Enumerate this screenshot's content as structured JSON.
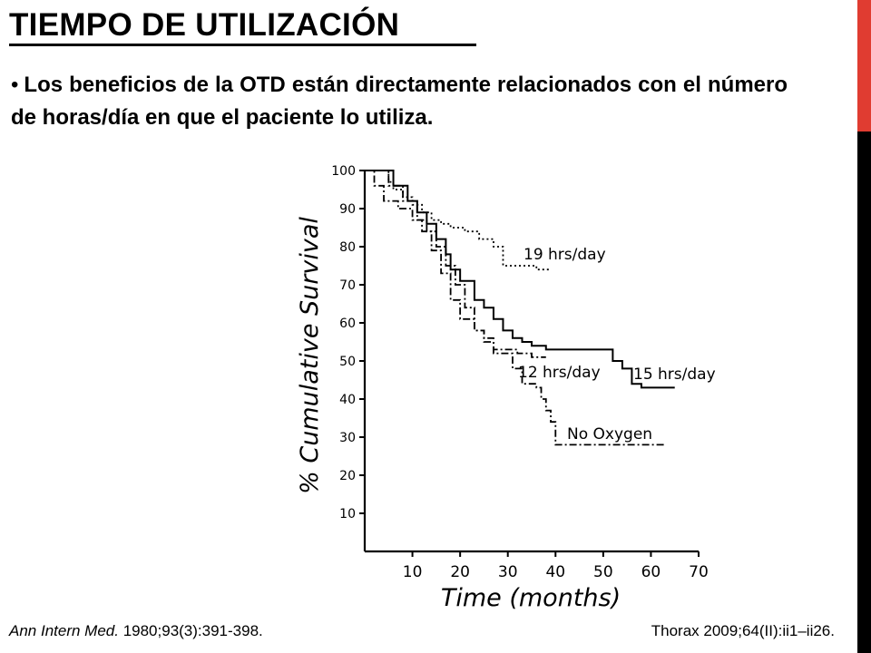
{
  "slide": {
    "title": "TIEMPO DE UTILIZACIÓN",
    "bullet": "Los beneficios de la OTD están directamente relacionados con el número de horas/día en que el paciente lo utiliza.",
    "accent_color": "#e03c31",
    "bar_color": "#000000"
  },
  "references": {
    "left_journal": "Ann Intern Med.",
    "left_rest": " 1980;93(3):391-398.",
    "right": "Thorax 2009;64(II):ii1–ii26."
  },
  "chart_data": {
    "type": "line",
    "xlabel": "Time (months)",
    "ylabel": "% Cumulative Survival",
    "xlim": [
      0,
      70
    ],
    "ylim": [
      0,
      100
    ],
    "xticks": [
      10,
      20,
      30,
      40,
      50,
      60,
      70
    ],
    "yticks": [
      10,
      20,
      30,
      40,
      50,
      60,
      70,
      80,
      90,
      100
    ],
    "grid": false,
    "series": [
      {
        "name": "19 hrs/day",
        "style": "dotted",
        "x": [
          0,
          3,
          5,
          6,
          8,
          10,
          12,
          14,
          16,
          18,
          21,
          24,
          27,
          29,
          36,
          39
        ],
        "y": [
          100,
          100,
          97,
          95,
          93,
          91,
          89,
          87,
          86,
          85,
          84,
          82,
          80,
          75,
          74,
          74
        ]
      },
      {
        "name": "15 hrs/day",
        "style": "solid",
        "x": [
          0,
          4,
          6,
          9,
          11,
          13,
          15,
          17,
          18,
          20,
          23,
          25,
          27,
          29,
          31,
          33,
          35,
          38,
          40,
          50,
          52,
          54,
          56,
          58,
          60,
          62,
          65
        ],
        "y": [
          100,
          100,
          96,
          92,
          89,
          86,
          82,
          78,
          74,
          71,
          66,
          64,
          61,
          58,
          56,
          55,
          54,
          53,
          53,
          53,
          50,
          48,
          44,
          43,
          43,
          43,
          43
        ]
      },
      {
        "name": "12 hrs/day",
        "style": "dash-dot",
        "x": [
          0,
          3,
          5,
          8,
          11,
          13,
          15,
          17,
          19,
          21,
          23,
          25,
          27,
          30,
          32,
          35,
          38
        ],
        "y": [
          100,
          100,
          96,
          92,
          87,
          84,
          80,
          75,
          70,
          64,
          58,
          55,
          53,
          53,
          52,
          51,
          51
        ]
      },
      {
        "name": "No Oxygen",
        "style": "dash-dot",
        "x": [
          0,
          2,
          4,
          7,
          10,
          12,
          14,
          16,
          18,
          20,
          23,
          25,
          27,
          29,
          31,
          33,
          36,
          37,
          38,
          39,
          40,
          45,
          55,
          60,
          63
        ],
        "y": [
          100,
          96,
          92,
          90,
          87,
          84,
          79,
          73,
          66,
          61,
          58,
          56,
          52,
          52,
          48,
          44,
          43,
          40,
          37,
          34,
          28,
          28,
          28,
          28,
          28
        ]
      }
    ],
    "annotations": [
      {
        "text": "19 hrs/day",
        "series": "19 hrs/day"
      },
      {
        "text": "15 hrs/day",
        "series": "15 hrs/day"
      },
      {
        "text": "12 hrs/day",
        "series": "12 hrs/day"
      },
      {
        "text": "No Oxygen",
        "series": "No Oxygen"
      }
    ]
  }
}
